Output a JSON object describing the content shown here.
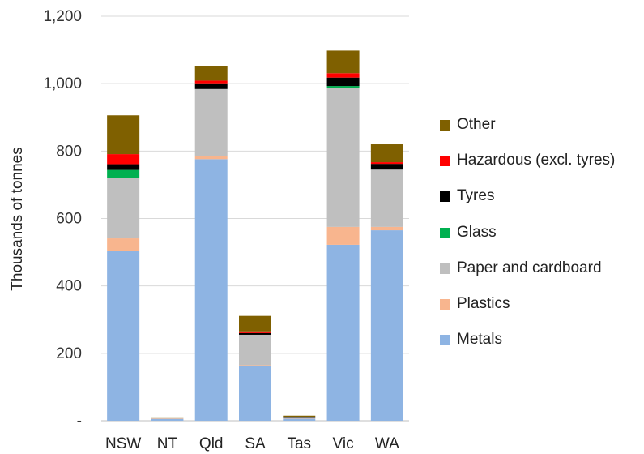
{
  "chart_data": {
    "type": "bar",
    "stacked": true,
    "title": "",
    "xlabel": "",
    "ylabel": "Thousands of tonnes",
    "ylim": [
      0,
      1200
    ],
    "yticks": [
      0,
      200,
      400,
      600,
      800,
      1000,
      1200
    ],
    "ytick_labels": [
      "-",
      "200",
      "400",
      "600",
      "800",
      "1,000",
      "1,200"
    ],
    "grid": "horizontal",
    "legend_position": "right",
    "categories": [
      "NSW",
      "NT",
      "Qld",
      "SA",
      "Tas",
      "Vic",
      "WA"
    ],
    "series": [
      {
        "name": "Metals",
        "color": "#8EB4E3",
        "values": [
          503,
          5,
          776,
          163,
          6,
          522,
          565
        ]
      },
      {
        "name": "Plastics",
        "color": "#F8B58E",
        "values": [
          38,
          1,
          10,
          2,
          1,
          53,
          10
        ]
      },
      {
        "name": "Paper and cardboard",
        "color": "#BFBFBF",
        "values": [
          180,
          3,
          198,
          90,
          4,
          413,
          170
        ]
      },
      {
        "name": "Glass",
        "color": "#00B050",
        "values": [
          23,
          0,
          0,
          0,
          0,
          5,
          0
        ]
      },
      {
        "name": "Tyres",
        "color": "#000000",
        "values": [
          17,
          0,
          17,
          5,
          1,
          25,
          17
        ]
      },
      {
        "name": "Hazardous (excl. tyres)",
        "color": "#FF0000",
        "values": [
          30,
          0,
          8,
          5,
          0,
          13,
          5
        ]
      },
      {
        "name": "Other",
        "color": "#7F6000",
        "values": [
          115,
          1,
          43,
          46,
          3,
          67,
          53
        ]
      }
    ],
    "legend_order": [
      "Other",
      "Hazardous (excl. tyres)",
      "Tyres",
      "Glass",
      "Paper and cardboard",
      "Plastics",
      "Metals"
    ]
  }
}
